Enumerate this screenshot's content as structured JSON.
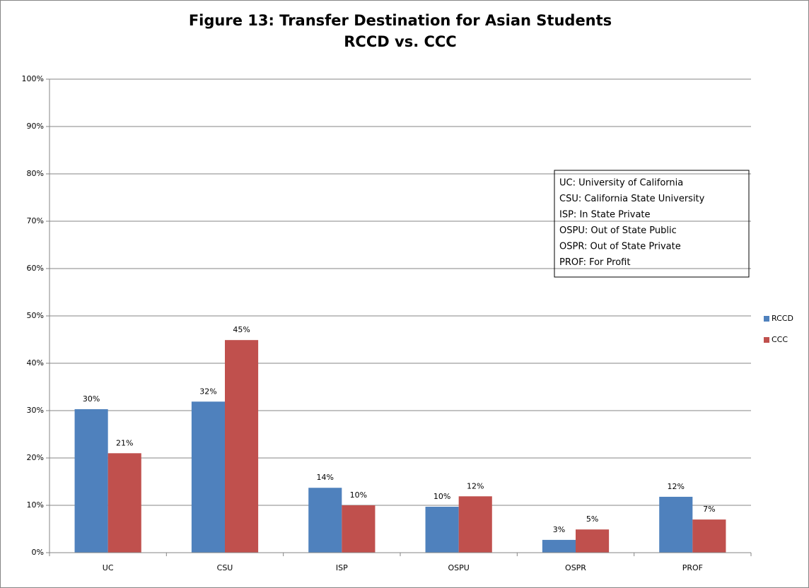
{
  "chart_data": {
    "type": "bar",
    "title": "Figure 13: Transfer Destination for Asian Students",
    "subtitle": "RCCD vs. CCC",
    "categories": [
      "UC",
      "CSU",
      "ISP",
      "OSPU",
      "OSPR",
      "PROF"
    ],
    "series": [
      {
        "name": "RCCD",
        "color": "#4f81bd",
        "values": [
          30.3,
          31.9,
          13.7,
          9.7,
          2.7,
          11.8
        ],
        "value_labels": [
          "30%",
          "32%",
          "14%",
          "10%",
          "3%",
          "12%"
        ]
      },
      {
        "name": "CCC",
        "color": "#c0504d",
        "values": [
          21.0,
          44.9,
          10.0,
          11.9,
          4.9,
          7.0
        ],
        "value_labels": [
          "21%",
          "45%",
          "10%",
          "12%",
          "5%",
          "7%"
        ]
      }
    ],
    "ylim": [
      0,
      100
    ],
    "yticks": [
      {
        "value": 0,
        "label": "0%"
      },
      {
        "value": 10,
        "label": "10%"
      },
      {
        "value": 20,
        "label": "20%"
      },
      {
        "value": 30,
        "label": "30%"
      },
      {
        "value": 40,
        "label": "40%"
      },
      {
        "value": 50,
        "label": "50%"
      },
      {
        "value": 60,
        "label": "60%"
      },
      {
        "value": 70,
        "label": "70%"
      },
      {
        "value": 80,
        "label": "80%"
      },
      {
        "value": 90,
        "label": "90%"
      },
      {
        "value": 100,
        "label": "100%"
      }
    ],
    "grid": true,
    "legend": "right",
    "annotations": [
      "UC: University of California",
      "CSU: California State University",
      "ISP: In State Private",
      "OSPU: Out of State Public",
      "OSPR: Out of State Private",
      "PROF: For Profit"
    ]
  }
}
